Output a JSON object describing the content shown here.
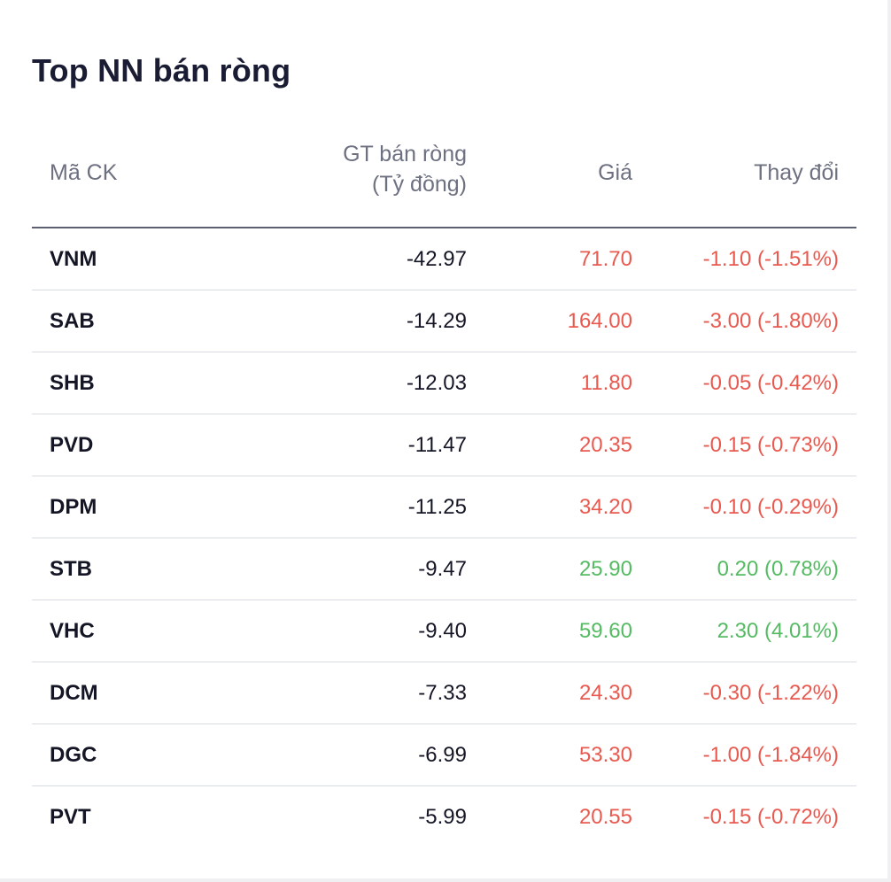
{
  "widget": {
    "title": "Top NN bán ròng"
  },
  "table": {
    "headers": {
      "code": "Mã CK",
      "value_line1": "GT bán ròng",
      "value_line2": "(Tỷ đồng)",
      "price": "Giá",
      "change": "Thay đổi"
    },
    "colors": {
      "down": "#e8594f",
      "up": "#54bb62"
    },
    "rows": [
      {
        "code": "VNM",
        "value": "-42.97",
        "price": "71.70",
        "change": "-1.10 (-1.51%)",
        "direction": "down"
      },
      {
        "code": "SAB",
        "value": "-14.29",
        "price": "164.00",
        "change": "-3.00 (-1.80%)",
        "direction": "down"
      },
      {
        "code": "SHB",
        "value": "-12.03",
        "price": "11.80",
        "change": "-0.05 (-0.42%)",
        "direction": "down"
      },
      {
        "code": "PVD",
        "value": "-11.47",
        "price": "20.35",
        "change": "-0.15 (-0.73%)",
        "direction": "down"
      },
      {
        "code": "DPM",
        "value": "-11.25",
        "price": "34.20",
        "change": "-0.10 (-0.29%)",
        "direction": "down"
      },
      {
        "code": "STB",
        "value": "-9.47",
        "price": "25.90",
        "change": "0.20 (0.78%)",
        "direction": "up"
      },
      {
        "code": "VHC",
        "value": "-9.40",
        "price": "59.60",
        "change": "2.30 (4.01%)",
        "direction": "up"
      },
      {
        "code": "DCM",
        "value": "-7.33",
        "price": "24.30",
        "change": "-0.30 (-1.22%)",
        "direction": "down"
      },
      {
        "code": "DGC",
        "value": "-6.99",
        "price": "53.30",
        "change": "-1.00 (-1.84%)",
        "direction": "down"
      },
      {
        "code": "PVT",
        "value": "-5.99",
        "price": "20.55",
        "change": "-0.15 (-0.72%)",
        "direction": "down"
      }
    ]
  }
}
